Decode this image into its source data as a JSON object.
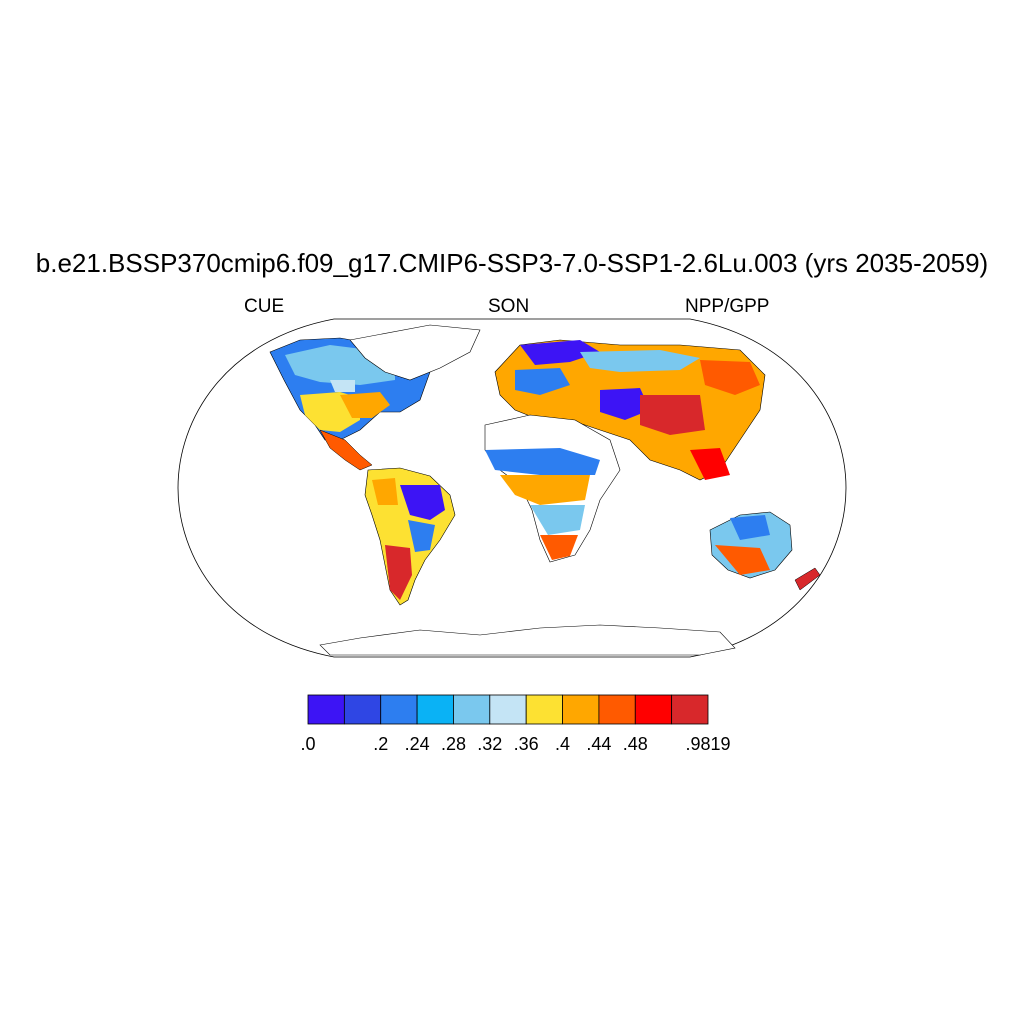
{
  "title": "b.e21.BSSP370cmip6.f09_g17.CMIP6-SSP3-7.0-SSP1-2.6Lu.003 (yrs 2035-2059)",
  "left_string": "CUE",
  "center_string": "SON",
  "right_string": "NPP/GPP",
  "colorbar": {
    "colors": [
      "#3d14f5",
      "#2f46e4",
      "#2d7ef0",
      "#0ab2f5",
      "#7ac8ee",
      "#c4e4f5",
      "#fde132",
      "#ffa700",
      "#ff5a00",
      "#ff0000",
      "#d8282b"
    ],
    "labels": [
      ".0",
      ".2",
      ".24",
      ".28",
      ".32",
      ".36",
      ".4",
      ".44",
      ".48",
      ".9819"
    ],
    "label_box_index": [
      0,
      2,
      3,
      4,
      5,
      6,
      7,
      8,
      9,
      11
    ]
  }
}
